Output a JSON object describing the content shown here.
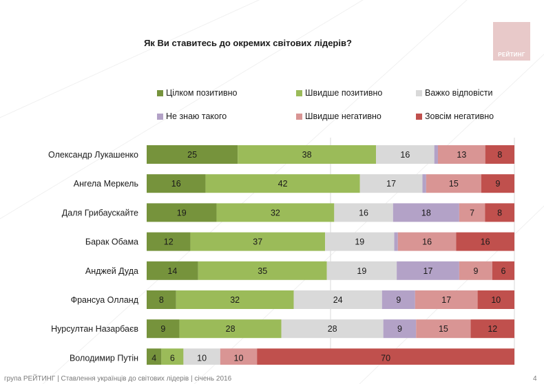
{
  "chart_data": {
    "type": "bar",
    "orientation": "horizontal-stacked-100",
    "title": "Як Ви ставитесь до окремих світових лідерів?",
    "categories": [
      "Олександр Лукашенко",
      "Ангела Меркель",
      "Даля Грибаускайте",
      "Барак Обама",
      "Анджей Дуда",
      "Франсуа Олланд",
      "Нурсултан Назарбаєв",
      "Володимир Путін"
    ],
    "series": [
      {
        "name": "Цілком позитивно",
        "color": "#76933c",
        "label_color": "#1a1a1a",
        "values": [
          25,
          16,
          19,
          12,
          14,
          8,
          9,
          4
        ]
      },
      {
        "name": "Швидше позитивно",
        "color": "#9bbb59",
        "label_color": "#1a1a1a",
        "values": [
          38,
          42,
          32,
          37,
          35,
          32,
          28,
          6
        ]
      },
      {
        "name": "Важко відповісти",
        "color": "#d9d9d9",
        "label_color": "#1a1a1a",
        "values": [
          16,
          17,
          16,
          19,
          19,
          24,
          28,
          10
        ]
      },
      {
        "name": "Не знаю такого",
        "color": "#b3a2c7",
        "label_color": "#1a1a1a",
        "values": [
          1,
          1,
          18,
          1,
          17,
          9,
          9,
          0
        ]
      },
      {
        "name": "Швидше негативно",
        "color": "#d99594",
        "label_color": "#1a1a1a",
        "values": [
          13,
          15,
          7,
          16,
          9,
          17,
          15,
          10
        ]
      },
      {
        "name": "Зовсім негативно",
        "color": "#c0504d",
        "label_color": "#1a1a1a",
        "values": [
          8,
          9,
          8,
          16,
          6,
          10,
          12,
          70
        ]
      }
    ],
    "hidden_labels_below": 2,
    "xlim": [
      0,
      100
    ],
    "grid": true
  },
  "brand": {
    "logo_text": "РЕЙТИНГ",
    "logo_color": "#e8c9c9"
  },
  "footer": {
    "text": "група РЕЙТИНГ | Ставлення українців до світових лідерів | січень 2016",
    "page": "4"
  }
}
